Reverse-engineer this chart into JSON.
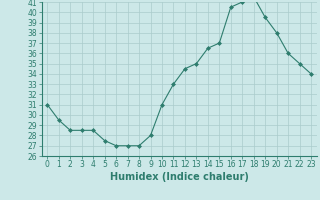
{
  "x": [
    0,
    1,
    2,
    3,
    4,
    5,
    6,
    7,
    8,
    9,
    10,
    11,
    12,
    13,
    14,
    15,
    16,
    17,
    18,
    19,
    20,
    21,
    22,
    23
  ],
  "y": [
    31,
    29.5,
    28.5,
    28.5,
    28.5,
    27.5,
    27,
    27,
    27,
    28,
    31,
    33,
    34.5,
    35,
    36.5,
    37,
    40.5,
    41,
    41.5,
    39.5,
    38,
    36,
    35,
    34
  ],
  "line_color": "#2e7d6e",
  "marker": "D",
  "marker_size": 2.0,
  "bg_color": "#cce8e8",
  "grid_color": "#aacccc",
  "xlabel": "Humidex (Indice chaleur)",
  "xlabel_fontsize": 7,
  "tick_fontsize": 5.5,
  "ylim": [
    26,
    41
  ],
  "yticks": [
    26,
    27,
    28,
    29,
    30,
    31,
    32,
    33,
    34,
    35,
    36,
    37,
    38,
    39,
    40,
    41
  ],
  "xticks": [
    0,
    1,
    2,
    3,
    4,
    5,
    6,
    7,
    8,
    9,
    10,
    11,
    12,
    13,
    14,
    15,
    16,
    17,
    18,
    19,
    20,
    21,
    22,
    23
  ]
}
